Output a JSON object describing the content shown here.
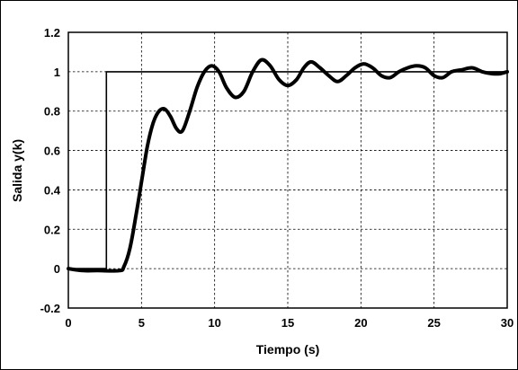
{
  "chart_data": {
    "type": "line",
    "xlabel": "Tiempo (s)",
    "ylabel": "Salida y(k)",
    "xlim": [
      0,
      30
    ],
    "ylim": [
      -0.2,
      1.2
    ],
    "xticks": [
      "0",
      "5",
      "10",
      "15",
      "20",
      "25",
      "30"
    ],
    "yticks": [
      "-0.2",
      "0",
      "0.2",
      "0.4",
      "0.6",
      "0.8",
      "1",
      "1.2"
    ],
    "grid": true,
    "legend": "none",
    "series": [
      {
        "role": "reference",
        "step": true,
        "color": "#000000",
        "x": [
          0,
          2.6,
          2.6,
          30
        ],
        "y": [
          0,
          0,
          1,
          1
        ]
      },
      {
        "role": "output",
        "color": "#000000",
        "x": [
          0,
          1,
          2,
          3.5,
          3.8,
          4.2,
          4.6,
          5.0,
          5.4,
          5.8,
          6.2,
          6.6,
          7.0,
          7.4,
          7.8,
          8.3,
          8.8,
          9.3,
          9.8,
          10.3,
          10.8,
          11.4,
          12.0,
          12.6,
          13.2,
          13.8,
          14.4,
          15.0,
          15.6,
          16.1,
          16.6,
          17.2,
          17.8,
          18.4,
          19.0,
          19.6,
          20.2,
          20.8,
          21.4,
          22.0,
          22.6,
          23.2,
          23.8,
          24.4,
          25.0,
          25.6,
          26.2,
          26.9,
          27.6,
          28.3,
          29.0,
          29.5,
          30.0
        ],
        "y": [
          0,
          -0.01,
          -0.01,
          -0.01,
          0.01,
          0.1,
          0.26,
          0.44,
          0.62,
          0.74,
          0.8,
          0.81,
          0.77,
          0.71,
          0.7,
          0.8,
          0.92,
          1.0,
          1.03,
          1.0,
          0.92,
          0.87,
          0.9,
          1.0,
          1.06,
          1.03,
          0.96,
          0.93,
          0.96,
          1.02,
          1.05,
          1.02,
          0.98,
          0.95,
          0.98,
          1.02,
          1.04,
          1.02,
          0.98,
          0.97,
          1.0,
          1.02,
          1.03,
          1.02,
          0.98,
          0.97,
          1.0,
          1.01,
          1.02,
          1.0,
          0.99,
          0.99,
          1.0
        ]
      }
    ]
  }
}
